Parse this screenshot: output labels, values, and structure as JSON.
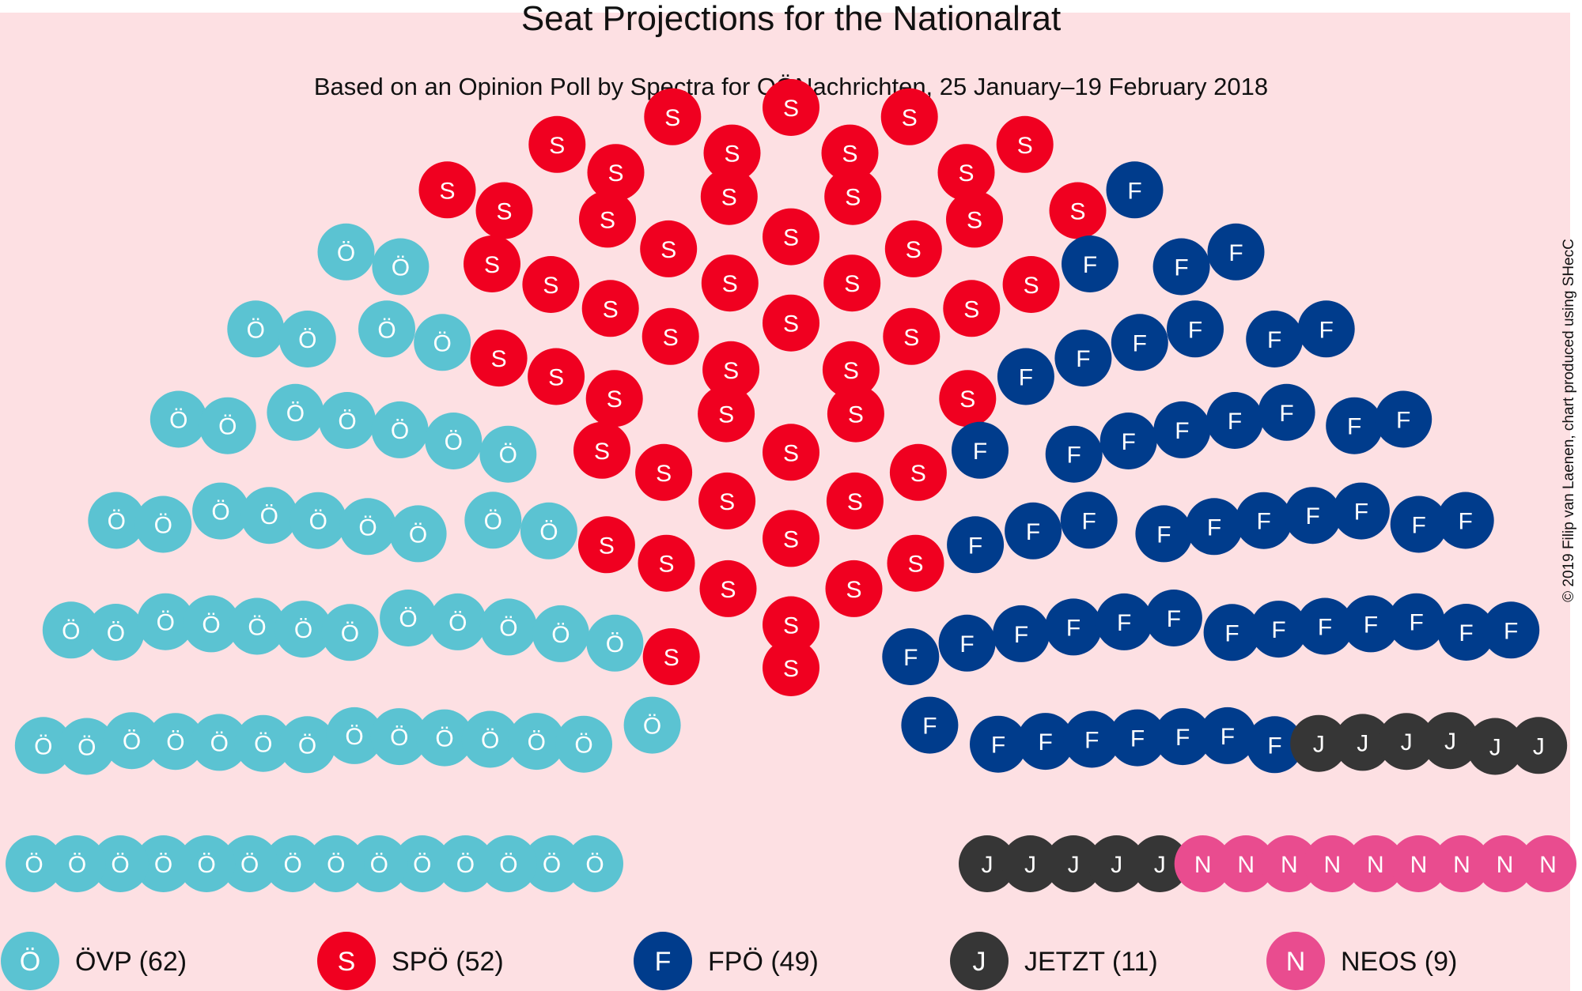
{
  "chart_data": {
    "type": "parliament",
    "title": "Seat Projections for the Nationalrat",
    "subtitle": "Based on an Opinion Poll by Spectra for OÖNachrichten, 25 January–19 February 2018",
    "credit": "© 2019 Filip van Laenen, chart produced using SHecC",
    "background_color": "#fde0e3",
    "total_seats": 183,
    "rows": 14,
    "parties": [
      {
        "name": "ÖVP",
        "letter": "Ö",
        "seats": 62,
        "label": "ÖVP (62)",
        "color": "#5bc3d2"
      },
      {
        "name": "SPÖ",
        "letter": "S",
        "seats": 52,
        "label": "SPÖ (52)",
        "color": "#f00020"
      },
      {
        "name": "FPÖ",
        "letter": "F",
        "seats": 49,
        "label": "FPÖ (49)",
        "color": "#003c8c"
      },
      {
        "name": "JETZT",
        "letter": "J",
        "seats": 11,
        "label": "JETZT (11)",
        "color": "#363636"
      },
      {
        "name": "NEOS",
        "letter": "N",
        "seats": 9,
        "label": "NEOS (9)",
        "color": "#e94c8f"
      }
    ]
  }
}
